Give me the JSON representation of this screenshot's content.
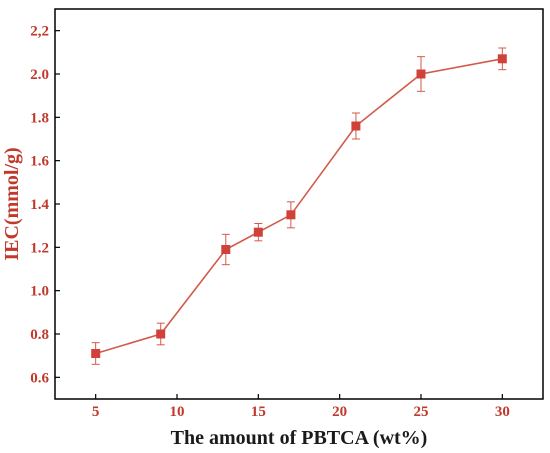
{
  "chart_data": {
    "type": "line",
    "title": "",
    "xlabel": "The amount of PBTCA (wt%)",
    "ylabel": "IEC(mmol/g)",
    "xlim": [
      2.5,
      32.5
    ],
    "ylim": [
      0.5,
      2.3
    ],
    "xticks": [
      "5",
      "10",
      "15",
      "20",
      "25",
      "30"
    ],
    "yticks": [
      "0.6",
      "0.8",
      "1.0",
      "1.2",
      "1.4",
      "1.6",
      "1.8",
      "2.0",
      "2,2"
    ],
    "grid": false,
    "legend": "none",
    "series": [
      {
        "x": [
          5,
          9,
          13,
          15,
          17,
          21,
          25,
          30
        ],
        "y": [
          0.71,
          0.8,
          1.19,
          1.27,
          1.35,
          1.76,
          2.0,
          2.07
        ],
        "error": [
          0.05,
          0.05,
          0.07,
          0.04,
          0.06,
          0.06,
          0.08,
          0.05
        ]
      }
    ]
  },
  "colors": {
    "line": "#d35a4a",
    "marker": "#d0413a",
    "tick_label": "#c0392b",
    "ylabel": "#c0392b",
    "xlabel": "#1a1a1a",
    "axis": "#000000"
  }
}
